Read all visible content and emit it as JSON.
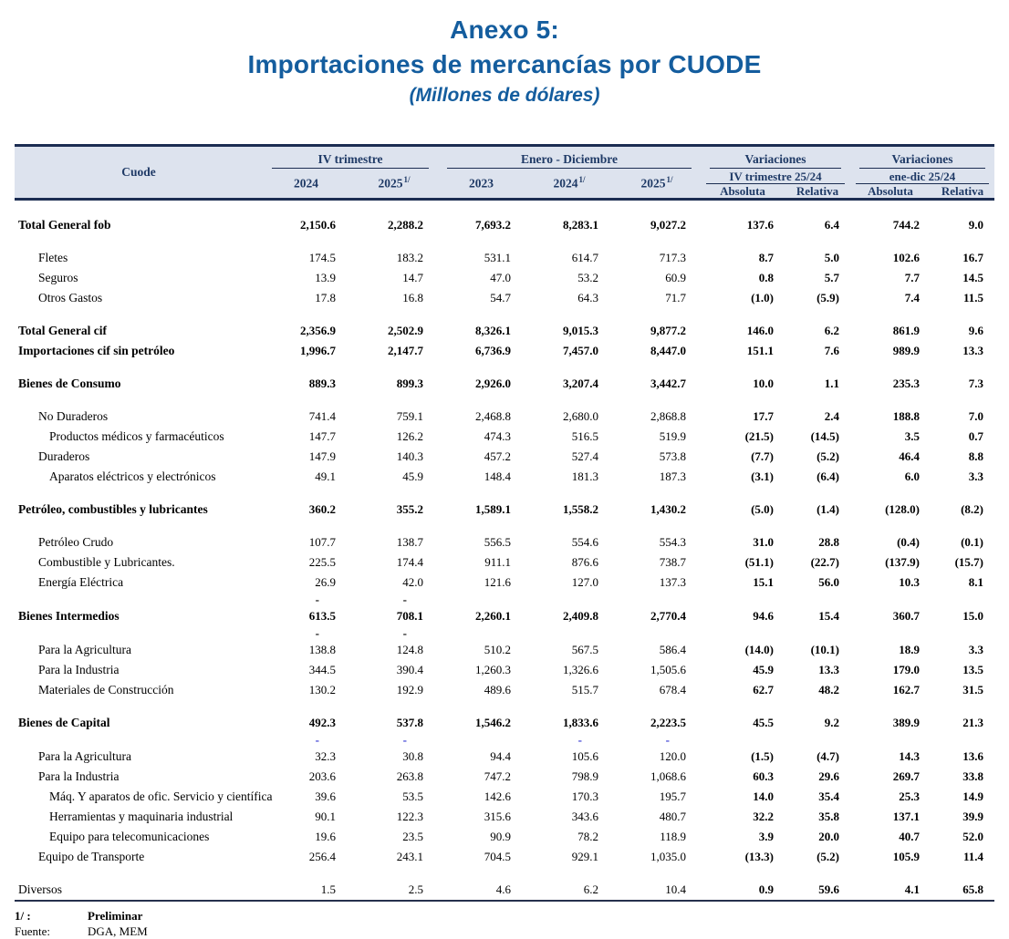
{
  "title": {
    "line1": "Anexo 5:",
    "line2": "Importaciones de mercancías por CUODE",
    "line3": "(Millones de dólares)"
  },
  "colors": {
    "title_blue": "#145d9e",
    "header_bg": "#dde3ee",
    "header_text": "#1f3a66",
    "border_navy": "#1c2d52",
    "dash_blue": "#2b2fd0"
  },
  "table": {
    "header": {
      "cuode": "Cuode",
      "groups": [
        {
          "label": "IV trimestre",
          "cols": [
            {
              "label": "2024",
              "sup": ""
            },
            {
              "label": "2025",
              "sup": "1/"
            }
          ]
        },
        {
          "label": "Enero - Diciembre",
          "cols": [
            {
              "label": "2023",
              "sup": ""
            },
            {
              "label": "2024",
              "sup": "1/"
            },
            {
              "label": "2025",
              "sup": "1/"
            }
          ]
        },
        {
          "label": "Variaciones",
          "sub": "IV trimestre 25/24",
          "cols": [
            {
              "label": "Absoluta",
              "sup": ""
            },
            {
              "label": "Relativa",
              "sup": ""
            }
          ]
        },
        {
          "label": "Variaciones",
          "sub": "ene-dic 25/24",
          "cols": [
            {
              "label": "Absoluta",
              "sup": ""
            },
            {
              "label": "Relativa",
              "sup": ""
            }
          ]
        }
      ]
    },
    "rows": [
      {
        "type": "spacer"
      },
      {
        "label": "Total General fob",
        "indent": 0,
        "bold": true,
        "values": [
          "2,150.6",
          "2,288.2",
          "7,693.2",
          "8,283.1",
          "9,027.2",
          "137.6",
          "6.4",
          "744.2",
          "9.0"
        ]
      },
      {
        "type": "spacer"
      },
      {
        "label": "Fletes",
        "indent": 1,
        "values": [
          "174.5",
          "183.2",
          "531.1",
          "614.7",
          "717.3",
          "8.7",
          "5.0",
          "102.6",
          "16.7"
        ]
      },
      {
        "label": "Seguros",
        "indent": 1,
        "values": [
          "13.9",
          "14.7",
          "47.0",
          "53.2",
          "60.9",
          "0.8",
          "5.7",
          "7.7",
          "14.5"
        ]
      },
      {
        "label": "Otros Gastos",
        "indent": 1,
        "values": [
          "17.8",
          "16.8",
          "54.7",
          "64.3",
          "71.7",
          "(1.0)",
          "(5.9)",
          "7.4",
          "11.5"
        ]
      },
      {
        "type": "spacer"
      },
      {
        "label": "Total General cif",
        "indent": 0,
        "bold": true,
        "values": [
          "2,356.9",
          "2,502.9",
          "8,326.1",
          "9,015.3",
          "9,877.2",
          "146.0",
          "6.2",
          "861.9",
          "9.6"
        ]
      },
      {
        "label": "Importaciones cif sin petróleo",
        "indent": 0,
        "bold": true,
        "values": [
          "1,996.7",
          "2,147.7",
          "6,736.9",
          "7,457.0",
          "8,447.0",
          "151.1",
          "7.6",
          "989.9",
          "13.3"
        ]
      },
      {
        "type": "spacer"
      },
      {
        "label": "Bienes de Consumo",
        "indent": 0,
        "bold": true,
        "values": [
          "889.3",
          "899.3",
          "2,926.0",
          "3,207.4",
          "3,442.7",
          "10.0",
          "1.1",
          "235.3",
          "7.3"
        ]
      },
      {
        "type": "spacer"
      },
      {
        "label": "No Duraderos",
        "indent": 1,
        "values": [
          "741.4",
          "759.1",
          "2,468.8",
          "2,680.0",
          "2,868.8",
          "17.7",
          "2.4",
          "188.8",
          "7.0"
        ]
      },
      {
        "label": "Productos médicos y farmacéuticos",
        "indent": 2,
        "values": [
          "147.7",
          "126.2",
          "474.3",
          "516.5",
          "519.9",
          "(21.5)",
          "(14.5)",
          "3.5",
          "0.7"
        ]
      },
      {
        "label": "Duraderos",
        "indent": 1,
        "values": [
          "147.9",
          "140.3",
          "457.2",
          "527.4",
          "573.8",
          "(7.7)",
          "(5.2)",
          "46.4",
          "8.8"
        ]
      },
      {
        "label": "Aparatos eléctricos y electrónicos",
        "indent": 2,
        "values": [
          "49.1",
          "45.9",
          "148.4",
          "181.3",
          "187.3",
          "(3.1)",
          "(6.4)",
          "6.0",
          "3.3"
        ]
      },
      {
        "type": "spacer"
      },
      {
        "label": "Petróleo, combustibles y lubricantes",
        "indent": 0,
        "bold": true,
        "values": [
          "360.2",
          "355.2",
          "1,589.1",
          "1,558.2",
          "1,430.2",
          "(5.0)",
          "(1.4)",
          "(128.0)",
          "(8.2)"
        ]
      },
      {
        "type": "spacer"
      },
      {
        "label": "Petróleo Crudo",
        "indent": 1,
        "values": [
          "107.7",
          "138.7",
          "556.5",
          "554.6",
          "554.3",
          "31.0",
          "28.8",
          "(0.4)",
          "(0.1)"
        ]
      },
      {
        "label": "Combustible y Lubricantes.",
        "indent": 1,
        "values": [
          "225.5",
          "174.4",
          "911.1",
          "876.6",
          "738.7",
          "(51.1)",
          "(22.7)",
          "(137.9)",
          "(15.7)"
        ]
      },
      {
        "label": "Energía Eléctrica",
        "indent": 1,
        "values": [
          "26.9",
          "42.0",
          "121.6",
          "127.0",
          "137.3",
          "15.1",
          "56.0",
          "10.3",
          "8.1"
        ]
      },
      {
        "type": "dash",
        "dash_color": "black",
        "values": [
          "-",
          "-",
          "",
          "",
          "",
          "",
          "",
          "",
          ""
        ]
      },
      {
        "label": "Bienes Intermedios",
        "indent": 0,
        "bold": true,
        "values": [
          "613.5",
          "708.1",
          "2,260.1",
          "2,409.8",
          "2,770.4",
          "94.6",
          "15.4",
          "360.7",
          "15.0"
        ]
      },
      {
        "type": "dash",
        "dash_color": "black",
        "values": [
          "-",
          "-",
          "",
          "",
          "",
          "",
          "",
          "",
          ""
        ]
      },
      {
        "label": "Para la Agricultura",
        "indent": 1,
        "values": [
          "138.8",
          "124.8",
          "510.2",
          "567.5",
          "586.4",
          "(14.0)",
          "(10.1)",
          "18.9",
          "3.3"
        ]
      },
      {
        "label": "Para la Industria",
        "indent": 1,
        "values": [
          "344.5",
          "390.4",
          "1,260.3",
          "1,326.6",
          "1,505.6",
          "45.9",
          "13.3",
          "179.0",
          "13.5"
        ]
      },
      {
        "label": "Materiales de Construcción",
        "indent": 1,
        "values": [
          "130.2",
          "192.9",
          "489.6",
          "515.7",
          "678.4",
          "62.7",
          "48.2",
          "162.7",
          "31.5"
        ]
      },
      {
        "type": "spacer"
      },
      {
        "label": "Bienes de Capital",
        "indent": 0,
        "bold": true,
        "values": [
          "492.3",
          "537.8",
          "1,546.2",
          "1,833.6",
          "2,223.5",
          "45.5",
          "9.2",
          "389.9",
          "21.3"
        ]
      },
      {
        "type": "dash",
        "dash_color": "blue",
        "values": [
          "-",
          "-",
          "",
          "-",
          "-",
          "",
          "",
          "",
          ""
        ]
      },
      {
        "label": "Para la Agricultura",
        "indent": 1,
        "values": [
          "32.3",
          "30.8",
          "94.4",
          "105.6",
          "120.0",
          "(1.5)",
          "(4.7)",
          "14.3",
          "13.6"
        ]
      },
      {
        "label": "Para la Industria",
        "indent": 1,
        "values": [
          "203.6",
          "263.8",
          "747.2",
          "798.9",
          "1,068.6",
          "60.3",
          "29.6",
          "269.7",
          "33.8"
        ]
      },
      {
        "label": "Máq. Y aparatos de ofic. Servicio y científica",
        "indent": 2,
        "values": [
          "39.6",
          "53.5",
          "142.6",
          "170.3",
          "195.7",
          "14.0",
          "35.4",
          "25.3",
          "14.9"
        ]
      },
      {
        "label": "Herramientas y maquinaria industrial",
        "indent": 2,
        "values": [
          "90.1",
          "122.3",
          "315.6",
          "343.6",
          "480.7",
          "32.2",
          "35.8",
          "137.1",
          "39.9"
        ]
      },
      {
        "label": "Equipo para telecomunicaciones",
        "indent": 2,
        "values": [
          "19.6",
          "23.5",
          "90.9",
          "78.2",
          "118.9",
          "3.9",
          "20.0",
          "40.7",
          "52.0"
        ]
      },
      {
        "label": "Equipo de Transporte",
        "indent": 1,
        "values": [
          "256.4",
          "243.1",
          "704.5",
          "929.1",
          "1,035.0",
          "(13.3)",
          "(5.2)",
          "105.9",
          "11.4"
        ]
      },
      {
        "type": "spacer"
      },
      {
        "label": "Diversos",
        "indent": 0,
        "values": [
          "1.5",
          "2.5",
          "4.6",
          "6.2",
          "10.4",
          "0.9",
          "59.6",
          "4.1",
          "65.8"
        ]
      }
    ]
  },
  "footer": {
    "note_label": "1/ :",
    "note_text": "Preliminar",
    "source_label": "Fuente:",
    "source_text": "DGA, MEM"
  }
}
